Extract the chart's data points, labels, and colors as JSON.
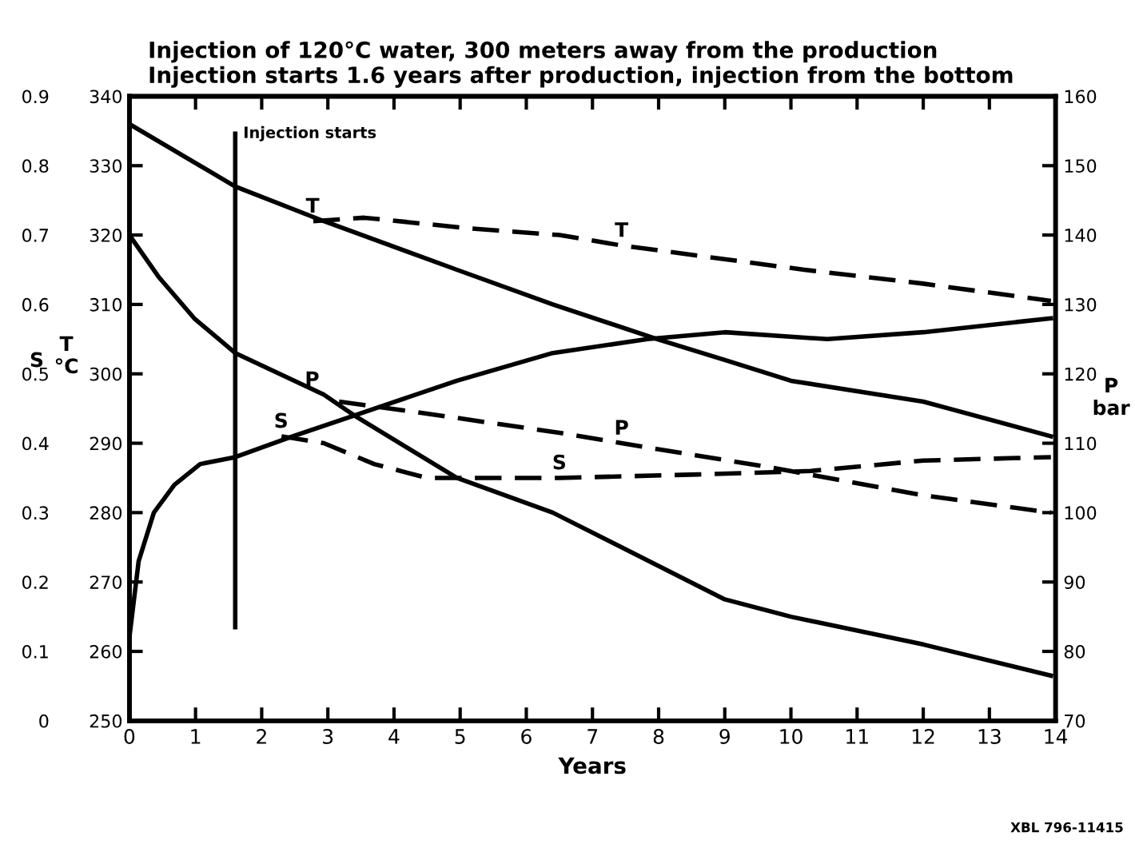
{
  "chart_data": {
    "type": "line",
    "title": "Injection of 120°C water, 300 meters away from the production\nInjection starts 1.6 years after production, injection from the bottom",
    "xlabel": "Years",
    "ylabel": "S",
    "y2label": "P\nbar",
    "y3label": "T\n°C",
    "xlim": [
      0,
      14
    ],
    "xticks": [
      0,
      1,
      2,
      3,
      4,
      5,
      6,
      7,
      8,
      9,
      10,
      11,
      12,
      13,
      14
    ],
    "ylim": [
      0,
      0.9
    ],
    "yticks": [
      0,
      0.1,
      0.2,
      0.3,
      0.4,
      0.5,
      0.6,
      0.7,
      0.8,
      0.9
    ],
    "y2lim": [
      70,
      160
    ],
    "y2ticks": [
      70,
      80,
      90,
      100,
      110,
      120,
      130,
      140,
      150,
      160
    ],
    "y3lim": [
      250,
      340
    ],
    "y3ticks": [
      250,
      260,
      270,
      280,
      290,
      300,
      310,
      320,
      330,
      340
    ],
    "grid": false,
    "legend": false,
    "marker": "none",
    "series": [
      {
        "name": "S",
        "color": "#000000",
        "line_style": "solid",
        "axis": "y",
        "x": [
          0,
          0.14,
          0.37,
          0.68,
          1.07,
          1.6,
          2.47,
          3.4,
          4.95,
          6.4,
          7.83,
          9.0,
          10.55,
          12.0,
          13.93
        ],
        "values": [
          0.12,
          0.23,
          0.3,
          0.34,
          0.37,
          0.38,
          0.41,
          0.44,
          0.49,
          0.53,
          0.55,
          0.56,
          0.55,
          0.56,
          0.58
        ]
      },
      {
        "name": "S",
        "color": "#000000",
        "line_style": "dashed",
        "axis": "y",
        "x": [
          2.3,
          2.94,
          3.7,
          4.5,
          6.5,
          8.6,
          10.3,
          12.0,
          13.93
        ],
        "values": [
          0.41,
          0.4,
          0.37,
          0.35,
          0.35,
          0.355,
          0.36,
          0.375,
          0.38
        ]
      },
      {
        "name": "T",
        "color": "#000000",
        "line_style": "solid",
        "axis": "y3",
        "x": [
          0,
          1.6,
          2.94,
          4.95,
          6.4,
          7.98,
          9.0,
          10.0,
          12.0,
          13.93
        ],
        "values": [
          336,
          327,
          322,
          315,
          310,
          305,
          302,
          299,
          296,
          291
        ]
      },
      {
        "name": "T",
        "color": "#000000",
        "line_style": "dashed",
        "axis": "y3",
        "x": [
          2.78,
          3.55,
          5.1,
          6.5,
          7.44,
          10.2,
          12.0,
          13.93
        ],
        "values": [
          322,
          322.5,
          321,
          320,
          318.5,
          315,
          313,
          310.5
        ]
      },
      {
        "name": "P",
        "color": "#000000",
        "line_style": "solid",
        "axis": "y2",
        "x": [
          0,
          0.44,
          0.98,
          1.6,
          2.94,
          3.4,
          4.95,
          6.4,
          7.44,
          9.0,
          10.0,
          12.0,
          13.93
        ],
        "values": [
          140,
          134,
          128,
          123,
          117,
          114,
          105,
          100,
          95,
          87.5,
          85,
          81,
          76.5
        ]
      },
      {
        "name": "P",
        "color": "#000000",
        "line_style": "dashed",
        "axis": "y2",
        "x": [
          3.17,
          4.33,
          6.5,
          7.44,
          9.7,
          12.0,
          13.93
        ],
        "values": [
          116,
          114.5,
          111.5,
          110,
          106.5,
          102.5,
          100
        ]
      }
    ],
    "ref_lines": [
      {
        "axis": "x",
        "value": 1.6,
        "label": "Injection starts",
        "color": "#000000",
        "line_style": "solid"
      }
    ],
    "annotations": [
      "XBL 796-11415"
    ]
  }
}
